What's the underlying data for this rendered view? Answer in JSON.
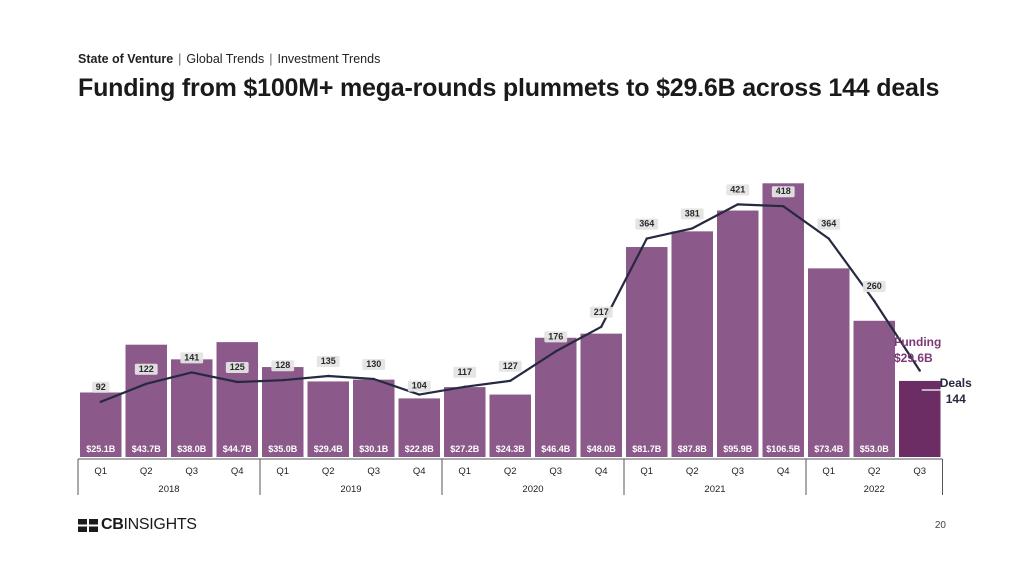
{
  "header": {
    "breadcrumb": [
      "State of Venture",
      "Global Trends",
      "Investment Trends"
    ],
    "title": "Funding from $100M+ mega-rounds plummets to $29.6B across 144 deals"
  },
  "footer": {
    "logo_text_bold": "CB",
    "logo_text_light": "INSIGHTS",
    "page_number": "20"
  },
  "colors": {
    "bar": "#8b5a8a",
    "bar_highlight": "#6b2d63",
    "line": "#262a40",
    "label_bg": "#e4e4e4",
    "funding_label": "#7b3a74"
  },
  "chart_data": {
    "type": "bar",
    "categories": [
      "Q1",
      "Q2",
      "Q3",
      "Q4",
      "Q1",
      "Q2",
      "Q3",
      "Q4",
      "Q1",
      "Q2",
      "Q3",
      "Q4",
      "Q1",
      "Q2",
      "Q3",
      "Q4",
      "Q1",
      "Q2",
      "Q3"
    ],
    "years": [
      {
        "label": "2018",
        "quarters": 4
      },
      {
        "label": "2019",
        "quarters": 4
      },
      {
        "label": "2020",
        "quarters": 4
      },
      {
        "label": "2021",
        "quarters": 4
      },
      {
        "label": "2022",
        "quarters": 3
      }
    ],
    "series": [
      {
        "name": "Funding",
        "type": "bar",
        "unit": "$B",
        "values": [
          25.1,
          43.7,
          38.0,
          44.7,
          35.0,
          29.4,
          30.1,
          22.8,
          27.2,
          24.3,
          46.4,
          48.0,
          81.7,
          87.8,
          95.9,
          106.5,
          73.4,
          53.0,
          29.6
        ],
        "labels": [
          "$25.1B",
          "$43.7B",
          "$38.0B",
          "$44.7B",
          "$35.0B",
          "$29.4B",
          "$30.1B",
          "$22.8B",
          "$27.2B",
          "$24.3B",
          "$46.4B",
          "$48.0B",
          "$81.7B",
          "$87.8B",
          "$95.9B",
          "$106.5B",
          "$73.4B",
          "$53.0B",
          ""
        ]
      },
      {
        "name": "Deals",
        "type": "line",
        "values": [
          92,
          122,
          141,
          125,
          128,
          135,
          130,
          104,
          117,
          127,
          176,
          217,
          364,
          381,
          421,
          418,
          364,
          260,
          144
        ],
        "labels": [
          "92",
          "122",
          "141",
          "125",
          "128",
          "135",
          "130",
          "104",
          "117",
          "127",
          "176",
          "217",
          "364",
          "381",
          "421",
          "418",
          "364",
          "260",
          ""
        ]
      }
    ],
    "annotations": {
      "funding_label": "Funding",
      "funding_value": "$29.6B",
      "deals_label": "Deals",
      "deals_value": "144"
    },
    "highlight_index": 18,
    "grid": false
  }
}
